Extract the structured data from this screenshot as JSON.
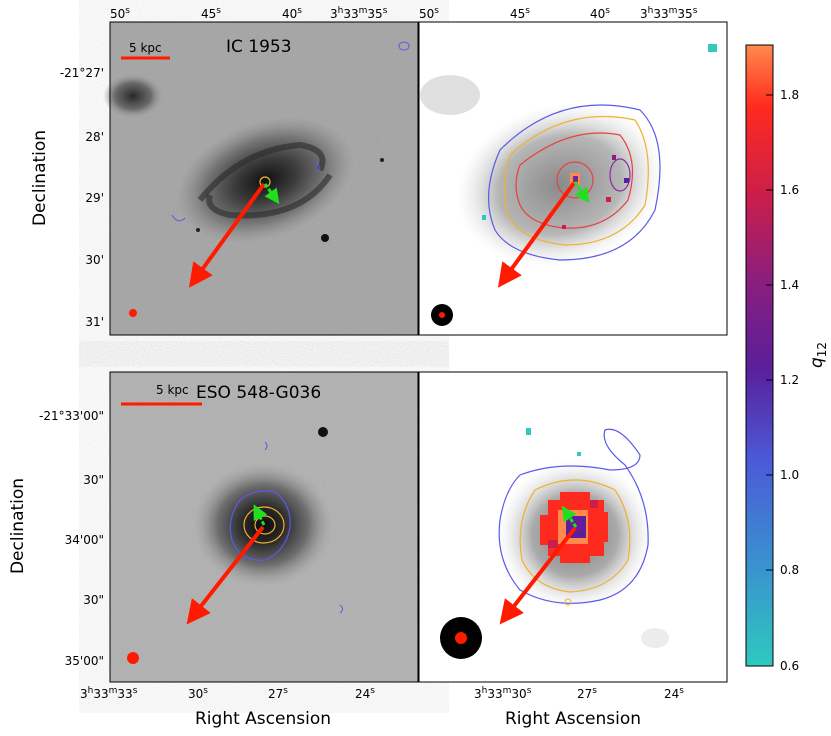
{
  "figure": {
    "colorbar": {
      "label_main": "q",
      "label_sub": "12",
      "ticks": [
        "0.6",
        "0.8",
        "1.0",
        "1.2",
        "1.4",
        "1.6",
        "1.8"
      ],
      "range": [
        0.6,
        1.9
      ],
      "colors": [
        "#2fc9bf",
        "#3a8fd0",
        "#4b5ad8",
        "#5a1f9a",
        "#8a1e7e",
        "#cc1e4a",
        "#ff2a1e",
        "#ff8a4c"
      ]
    },
    "top_row": {
      "galaxy_name": "IC 1953",
      "scale_label": "5 kpc",
      "ra_ticks": [
        "50",
        "45",
        "40",
        "3h33m35"
      ],
      "ra_tick_parts": [
        {
          "main": "50",
          "sup": "s"
        },
        {
          "main": "45",
          "sup": "s"
        },
        {
          "main": "40",
          "sup": "s"
        },
        {
          "main": "3",
          "h": "h",
          "m_num": "33",
          "m": "m",
          "s_num": "35",
          "s": "s"
        }
      ],
      "dec_ticks": [
        "-21°27'",
        "28'",
        "29'",
        "30'",
        "31'"
      ],
      "ylabel": "Declination"
    },
    "bottom_row": {
      "galaxy_name": "ESO 548-G036",
      "scale_label": "5 kpc",
      "ra_ticks_left": [
        {
          "main": "3",
          "h": "h",
          "m_num": "33",
          "m": "m",
          "s_num": "33",
          "s": "s"
        },
        {
          "main": "30",
          "sup": "s"
        },
        {
          "main": "27",
          "sup": "s"
        },
        {
          "main": "24",
          "sup": "s"
        }
      ],
      "ra_ticks_right": [
        {
          "main": "3",
          "h": "h",
          "m_num": "33",
          "m": "m",
          "s_num": "30",
          "s": "s"
        },
        {
          "main": "27",
          "sup": "s"
        },
        {
          "main": "24",
          "sup": "s"
        }
      ],
      "dec_ticks": [
        "-21°33'00\"",
        "30\"",
        "34'00\"",
        "30\"",
        "35'00\""
      ],
      "ylabel": "Declination",
      "xlabel": "Right Ascension"
    },
    "colors": {
      "arrow_red": "#ff1a00",
      "arrow_green": "#1fe01f",
      "contour_blue": "#5a5ae6",
      "contour_orange": "#f0b030",
      "contour_red": "#e84040",
      "contour_purple": "#8a2aa0"
    }
  }
}
